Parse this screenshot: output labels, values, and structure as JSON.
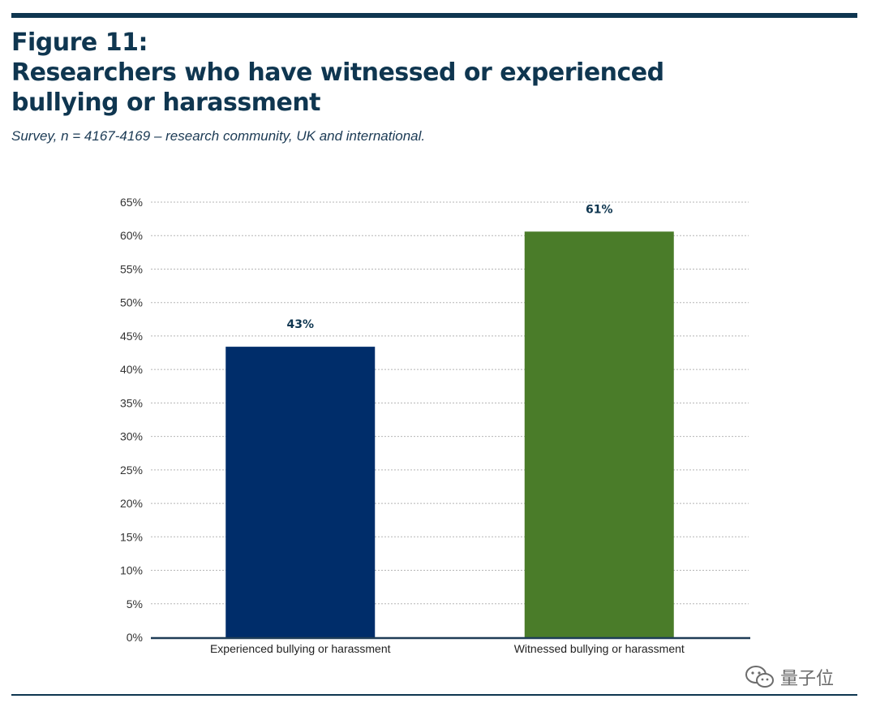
{
  "figure": {
    "label": "Figure 11:",
    "title_line1": "Researchers who have witnessed or experienced",
    "title_line2": "bullying or harassment",
    "subtitle": "Survey, n = 4167-4169 – research community, UK and international."
  },
  "colors": {
    "rule": "#0f3650",
    "bar_experienced": "#002d6a",
    "bar_witnessed": "#4a7c29",
    "gridline": "#b5b5b5",
    "axis": "#1f3d57"
  },
  "chart_data": {
    "type": "bar",
    "title": "Researchers who have witnessed or experienced bullying or harassment",
    "xlabel": "",
    "ylabel": "",
    "ylim": [
      0,
      65
    ],
    "yticks": [
      0,
      5,
      10,
      15,
      20,
      25,
      30,
      35,
      40,
      45,
      50,
      55,
      60,
      65
    ],
    "ytick_suffix": "%",
    "grid": true,
    "categories": [
      "Experienced bullying or harassment",
      "Witnessed bullying or harassment"
    ],
    "values": [
      43.4,
      60.6
    ],
    "data_labels": [
      "43%",
      "61%"
    ],
    "bar_colors": [
      "#002d6a",
      "#4a7c29"
    ]
  },
  "watermark": {
    "text": "量子位",
    "icon": "wechat-icon"
  }
}
